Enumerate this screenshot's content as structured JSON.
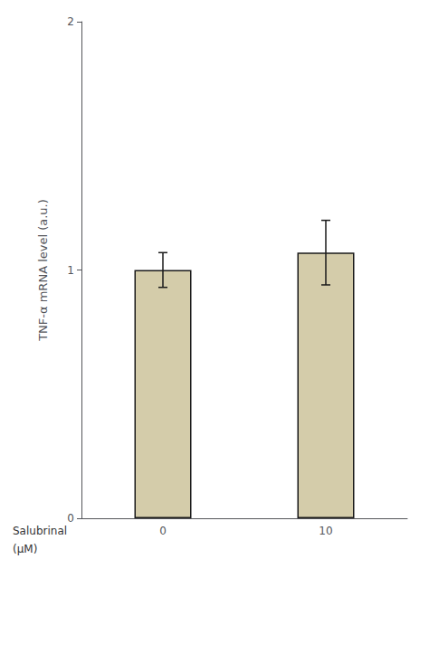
{
  "chart_data": {
    "type": "bar",
    "ylabel": "TNF-α mRNA level (a.u.)",
    "categories": [
      "0",
      "10"
    ],
    "values": [
      1.0,
      1.07
    ],
    "errors": [
      0.07,
      0.13
    ],
    "color": "#d4ccaa",
    "ylim": [
      0,
      2.0
    ],
    "yticks": [
      0,
      1,
      2
    ],
    "grid": false,
    "annotations": [
      "Salubrinal",
      "(μM)"
    ]
  }
}
